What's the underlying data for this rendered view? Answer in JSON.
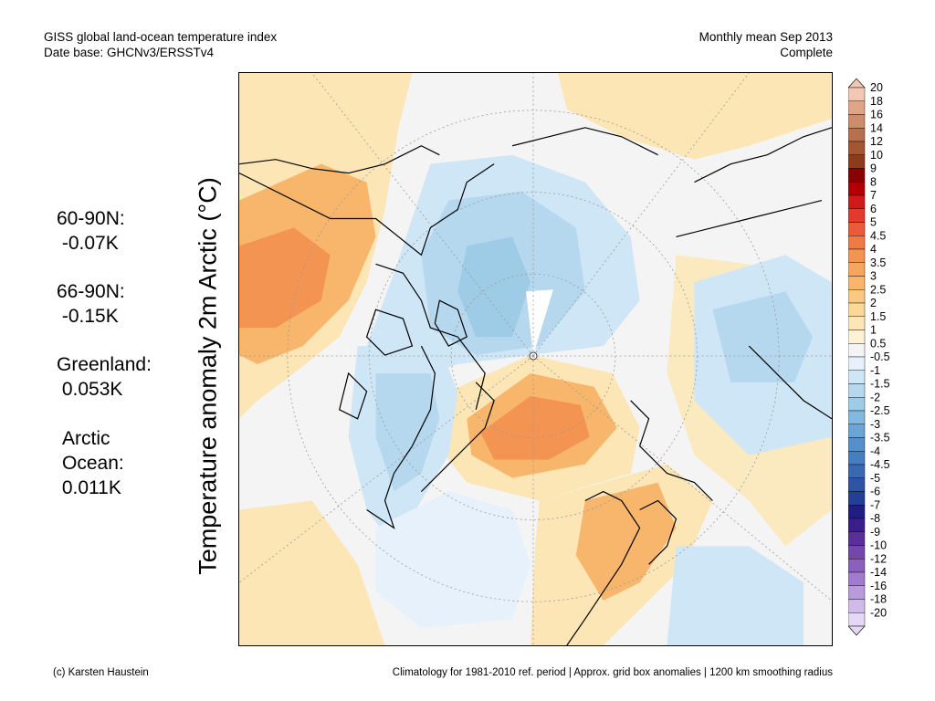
{
  "header": {
    "title_line1": "GISS global land-ocean temperature index",
    "title_line2": "Date base: GHCNv3/ERSSTv4",
    "period_line1": "Monthly mean Sep 2013",
    "period_line2": "Complete"
  },
  "stats": [
    {
      "label": "60-90N:",
      "value": " -0.07K"
    },
    {
      "label": "66-90N:",
      "value": " -0.15K"
    },
    {
      "label": "Greenland:",
      "value": " 0.053K"
    },
    {
      "label": "Arctic",
      "label2": "Ocean:",
      "value": " 0.011K"
    }
  ],
  "axis_title": "Temperature anomaly 2m Arctic (°C)",
  "colorbar": {
    "labels": [
      "20",
      "18",
      "16",
      "14",
      "12",
      "10",
      "9",
      "8",
      "7",
      "6",
      "5",
      "4.5",
      "4",
      "3.5",
      "3",
      "2.5",
      "2",
      "1.5",
      "1",
      "0.5",
      "-0.5",
      "-1",
      "-1.5",
      "-2",
      "-2.5",
      "-3",
      "-3.5",
      "-4",
      "-4.5",
      "-5",
      "-6",
      "-7",
      "-8",
      "-9",
      "-10",
      "-12",
      "-14",
      "-16",
      "-18",
      "-20"
    ],
    "colors": [
      "#f2c8b4",
      "#e0a486",
      "#cd8d6c",
      "#b7704e",
      "#a45532",
      "#8e3b1a",
      "#8a0000",
      "#b00000",
      "#d01a1a",
      "#e23b2e",
      "#ec5a3a",
      "#f07a44",
      "#f39452",
      "#f6a65e",
      "#f8b66c",
      "#fac981",
      "#fbd898",
      "#fce6b5",
      "#fdf2d6",
      "#f4f4f4",
      "#e6f1fb",
      "#cfe6f6",
      "#b6d8ee",
      "#9ecbe6",
      "#84b9df",
      "#6aa5d6",
      "#5590cb",
      "#467ebf",
      "#3a69b2",
      "#2e54a3",
      "#243f95",
      "#201e85",
      "#3a1e8c",
      "#5a2f9a",
      "#7447ab",
      "#8a60bd",
      "#a27bcc",
      "#b99bdb",
      "#d0bbe8",
      "#e4d8f4"
    ]
  },
  "footer": {
    "left": "(c) Karsten Haustein",
    "right": "Climatology for 1981-2010 ref. period | Approx. grid box anomalies | 1200 km smoothing radius"
  },
  "map_colors": {
    "background": "#f4f4f4",
    "warm1": "#fce6b5",
    "warm2": "#fbd898",
    "warm3": "#f8b66c",
    "warm4": "#f39452",
    "cool1": "#e6f1fb",
    "cool2": "#cfe6f6",
    "cool3": "#b6d8ee",
    "cool4": "#9ecbe6",
    "land_outline": "#000000"
  }
}
